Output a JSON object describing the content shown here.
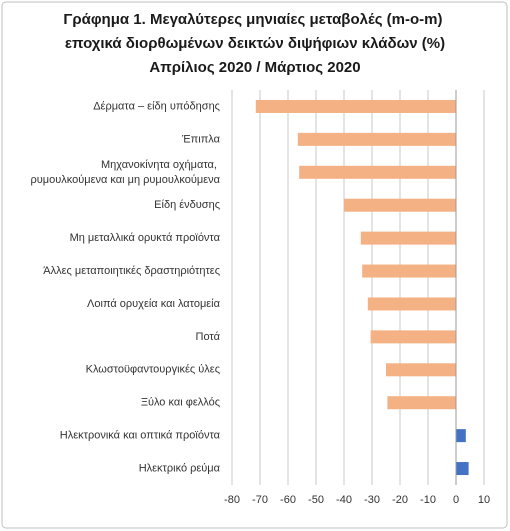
{
  "chart_data": {
    "type": "barh",
    "title": "Γράφημα 1. Μεγαλύτερες μηνιαίες μεταβολές (m-o-m) εποχικά διορθωμένων δεικτών διψήφιων κλάδων (%)",
    "subtitle": "Απρίλιος 2020 / Μάρτιος 2020",
    "categories": [
      "Δέρματα – είδη υπόδησης",
      "Έπιπλα",
      "Μηχανοκίνητα οχήματα, ρυμουλκούμενα και μη ρυμουλκούμενα",
      "Είδη ένδυσης",
      "Μη μεταλλικά ορυκτά προϊόντα",
      "Άλλες μεταποιητικές δραστηριότητες",
      "Λοιπά ορυχεία και λατομεία",
      "Ποτά",
      "Κλωστοϋφαντουργικές ύλες",
      "Ξύλο και φελλός",
      "Ηλεκτρονικά και οπτικά προϊόντα",
      "Ηλεκτρικό ρεύμα"
    ],
    "values": [
      -71.5,
      -56.5,
      -56,
      -40,
      -34,
      -33.5,
      -31.5,
      -30.5,
      -25,
      -24.5,
      3.5,
      4.5
    ],
    "negative_color": "#f4b183",
    "positive_color": "#4472c4",
    "xlim": [
      -80,
      10
    ],
    "xticks": [
      -80,
      -70,
      -60,
      -50,
      -40,
      -30,
      -20,
      -10,
      0,
      10
    ],
    "grid": true
  }
}
